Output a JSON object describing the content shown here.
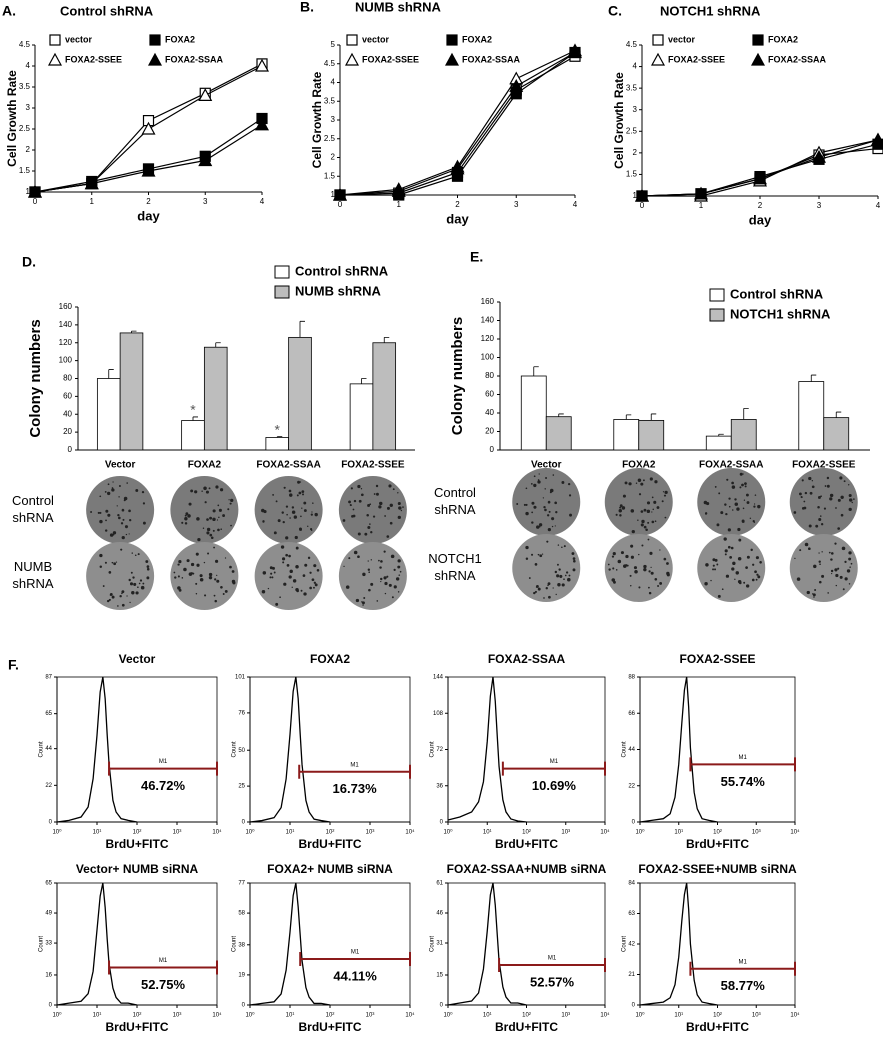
{
  "chart_data": [
    {
      "type": "line",
      "panel": "A.",
      "title": "Control shRNA",
      "xlabel": "day",
      "ylabel": "Cell Growth Rate",
      "x": [
        0,
        1,
        2,
        3,
        4
      ],
      "xlim": [
        0,
        4
      ],
      "xticks": [
        0,
        1,
        2,
        3,
        4
      ],
      "ylim": [
        1,
        4.5
      ],
      "yticks": [
        1,
        1.5,
        2,
        2.5,
        3,
        3.5,
        4,
        4.5
      ],
      "legend": "top-left",
      "series": [
        {
          "name": "vector",
          "color": "#000",
          "marker": "square",
          "filled": false,
          "values": [
            1,
            1.2,
            2.7,
            3.35,
            4.05
          ]
        },
        {
          "name": "FOXA2",
          "color": "#000",
          "marker": "square",
          "filled": true,
          "values": [
            1,
            1.25,
            1.55,
            1.85,
            2.75
          ]
        },
        {
          "name": "FOXA2-SSEE",
          "color": "#000",
          "marker": "triangle",
          "filled": false,
          "values": [
            1,
            1.2,
            2.5,
            3.3,
            4.0
          ]
        },
        {
          "name": "FOXA2-SSAA",
          "color": "#000",
          "marker": "triangle",
          "filled": true,
          "values": [
            1,
            1.2,
            1.5,
            1.75,
            2.6
          ]
        }
      ]
    },
    {
      "type": "line",
      "panel": "B.",
      "title": "NUMB  shRNA",
      "xlabel": "day",
      "ylabel": "Cell Growth Rate",
      "x": [
        0,
        1,
        2,
        3,
        4
      ],
      "xlim": [
        0,
        4
      ],
      "xticks": [
        0,
        1,
        2,
        3,
        4
      ],
      "ylim": [
        1,
        5
      ],
      "yticks": [
        1,
        1.5,
        2,
        2.5,
        3,
        3.5,
        4,
        4.5,
        5
      ],
      "legend": "top-left",
      "series": [
        {
          "name": "vector",
          "color": "#000",
          "marker": "square",
          "filled": false,
          "values": [
            1,
            1.05,
            1.6,
            3.8,
            4.7
          ]
        },
        {
          "name": "FOXA2",
          "color": "#000",
          "marker": "square",
          "filled": true,
          "values": [
            1,
            1.0,
            1.5,
            3.7,
            4.8
          ]
        },
        {
          "name": "FOXA2-SSEE",
          "color": "#000",
          "marker": "triangle",
          "filled": false,
          "values": [
            1,
            1.15,
            1.75,
            4.1,
            4.85
          ]
        },
        {
          "name": "FOXA2-SSAA",
          "color": "#000",
          "marker": "triangle",
          "filled": true,
          "values": [
            1,
            1.1,
            1.7,
            3.9,
            4.8
          ]
        }
      ]
    },
    {
      "type": "line",
      "panel": "C.",
      "title": "NOTCH1  shRNA",
      "xlabel": "day",
      "ylabel": "Cell Growth Rate",
      "x": [
        0,
        1,
        2,
        3,
        4
      ],
      "xlim": [
        0,
        4
      ],
      "xticks": [
        0,
        1,
        2,
        3,
        4
      ],
      "ylim": [
        1,
        4.5
      ],
      "yticks": [
        1,
        1.5,
        2,
        2.5,
        3,
        3.5,
        4,
        4.5
      ],
      "legend": "top-left",
      "series": [
        {
          "name": "vector",
          "color": "#000",
          "marker": "square",
          "filled": false,
          "values": [
            1,
            1.05,
            1.4,
            1.95,
            2.1
          ]
        },
        {
          "name": "FOXA2",
          "color": "#000",
          "marker": "square",
          "filled": true,
          "values": [
            1,
            1.05,
            1.45,
            1.85,
            2.2
          ]
        },
        {
          "name": "FOXA2-SSEE",
          "color": "#000",
          "marker": "triangle",
          "filled": false,
          "values": [
            1,
            1.0,
            1.35,
            2.0,
            2.3
          ]
        },
        {
          "name": "FOXA2-SSAA",
          "color": "#000",
          "marker": "triangle",
          "filled": true,
          "values": [
            1,
            1.05,
            1.4,
            1.9,
            2.3
          ]
        }
      ]
    },
    {
      "type": "bar",
      "panel": "D.",
      "ylabel": "Colony numbers",
      "categories": [
        "Vector",
        "FOXA2",
        "FOXA2-SSAA",
        "FOXA2-SSEE"
      ],
      "ylim": [
        0,
        160
      ],
      "yticks": [
        0,
        20,
        40,
        60,
        80,
        100,
        120,
        140,
        160
      ],
      "legend": "top-right",
      "series": [
        {
          "name": "Control shRNA",
          "color": "#ffffff",
          "values": [
            80,
            33,
            14,
            74
          ],
          "errors": [
            10,
            4,
            1,
            6
          ]
        },
        {
          "name": "NUMB  shRNA",
          "color": "#bdbdbd",
          "values": [
            131,
            115,
            126,
            120
          ],
          "errors": [
            2,
            5,
            18,
            6
          ]
        }
      ],
      "annotations": [
        {
          "text": "*",
          "category": "FOXA2"
        },
        {
          "text": "*",
          "category": "FOXA2-SSAA"
        }
      ],
      "row_labels": [
        [
          "Control",
          "shRNA"
        ],
        [
          "NUMB",
          "shRNA"
        ]
      ]
    },
    {
      "type": "bar",
      "panel": "E.",
      "ylabel": "Colony numbers",
      "categories": [
        "Vector",
        "FOXA2",
        "FOXA2-SSAA",
        "FOXA2-SSEE"
      ],
      "ylim": [
        0,
        160
      ],
      "yticks": [
        0,
        20,
        40,
        60,
        80,
        100,
        120,
        140,
        160
      ],
      "legend": "top-right",
      "series": [
        {
          "name": "Control shRNA",
          "color": "#ffffff",
          "values": [
            80,
            33,
            15,
            74
          ],
          "errors": [
            10,
            5,
            2,
            7
          ]
        },
        {
          "name": "NOTCH1 shRNA",
          "color": "#bdbdbd",
          "values": [
            36,
            32,
            33,
            35
          ],
          "errors": [
            3,
            7,
            12,
            6
          ]
        }
      ],
      "row_labels": [
        [
          "Control",
          "shRNA"
        ],
        [
          "NOTCH1",
          "shRNA"
        ]
      ]
    },
    {
      "type": "flow",
      "panel": "F.",
      "title": "Vector",
      "xlabel": "BrdU+FITC",
      "ylabel": "Count",
      "annotation": "46.72%",
      "gate_label": "M1",
      "gate": [
        20,
        10000
      ],
      "gate_y": 32,
      "x": [
        1,
        2,
        4,
        6,
        8,
        10,
        12,
        14,
        16,
        18,
        20,
        25,
        30,
        40,
        60,
        100
      ],
      "values": [
        0,
        1,
        3,
        9,
        26,
        52,
        78,
        87,
        74,
        52,
        35,
        13,
        6,
        2,
        1,
        0
      ],
      "xlim": [
        1,
        10000
      ],
      "xscale": "log",
      "xticks": [
        {
          "value": 1,
          "label": "10⁰"
        },
        {
          "value": 10,
          "label": "10¹"
        },
        {
          "value": 100,
          "label": "10²"
        },
        {
          "value": 1000,
          "label": "10³"
        },
        {
          "value": 10000,
          "label": "10⁴"
        }
      ],
      "ylim": [
        0,
        87
      ],
      "yticks": [
        0,
        22,
        44,
        65,
        87
      ]
    },
    {
      "type": "flow",
      "title": "FOXA2",
      "xlabel": "BrdU+FITC",
      "ylabel": "Count",
      "annotation": "16.73%",
      "gate_label": "M1",
      "gate": [
        17,
        10000
      ],
      "gate_y": 35,
      "x": [
        1,
        2,
        4,
        6,
        8,
        10,
        12,
        14,
        16,
        18,
        20,
        25,
        30,
        40,
        60,
        100
      ],
      "values": [
        0,
        1,
        3,
        10,
        30,
        61,
        91,
        101,
        86,
        61,
        40,
        15,
        7,
        2,
        1,
        0
      ],
      "xlim": [
        1,
        10000
      ],
      "xscale": "log",
      "xticks": [
        {
          "value": 1,
          "label": "10⁰"
        },
        {
          "value": 10,
          "label": "10¹"
        },
        {
          "value": 100,
          "label": "10²"
        },
        {
          "value": 1000,
          "label": "10³"
        },
        {
          "value": 10000,
          "label": "10⁴"
        }
      ],
      "ylim": [
        0,
        101
      ],
      "yticks": [
        0,
        25,
        50,
        76,
        101
      ]
    },
    {
      "type": "flow",
      "title": "FOXA2-SSAA",
      "xlabel": "BrdU+FITC",
      "ylabel": "Count",
      "annotation": "10.69%",
      "gate_label": "M1",
      "gate": [
        25,
        10000
      ],
      "gate_y": 53,
      "x": [
        1,
        2,
        4,
        6,
        8,
        10,
        12,
        14,
        16,
        18,
        20,
        25,
        30,
        40,
        60,
        100
      ],
      "values": [
        2,
        5,
        10,
        20,
        40,
        80,
        125,
        144,
        120,
        85,
        55,
        22,
        10,
        3,
        1,
        0
      ],
      "xlim": [
        1,
        10000
      ],
      "xscale": "log",
      "xticks": [
        {
          "value": 1,
          "label": "10⁰"
        },
        {
          "value": 10,
          "label": "10¹"
        },
        {
          "value": 100,
          "label": "10²"
        },
        {
          "value": 1000,
          "label": "10³"
        },
        {
          "value": 10000,
          "label": "10⁴"
        }
      ],
      "ylim": [
        0,
        144
      ],
      "yticks": [
        0,
        36,
        72,
        108,
        144
      ]
    },
    {
      "type": "flow",
      "title": "FOXA2-SSEE",
      "xlabel": "BrdU+FITC",
      "ylabel": "Count",
      "annotation": "55.74%",
      "gate_label": "M1",
      "gate": [
        20,
        10000
      ],
      "gate_y": 35,
      "x": [
        1,
        2,
        4,
        6,
        8,
        10,
        12,
        14,
        16,
        18,
        20,
        25,
        30,
        40,
        60,
        100
      ],
      "values": [
        0,
        1,
        2,
        5,
        15,
        35,
        60,
        80,
        88,
        70,
        45,
        18,
        8,
        2,
        1,
        0
      ],
      "xlim": [
        1,
        10000
      ],
      "xscale": "log",
      "xticks": [
        {
          "value": 1,
          "label": "10⁰"
        },
        {
          "value": 10,
          "label": "10¹"
        },
        {
          "value": 100,
          "label": "10²"
        },
        {
          "value": 1000,
          "label": "10³"
        },
        {
          "value": 10000,
          "label": "10⁴"
        }
      ],
      "ylim": [
        0,
        88
      ],
      "yticks": [
        0,
        22,
        44,
        66,
        88
      ]
    },
    {
      "type": "flow",
      "title": "Vector+ NUMB siRNA",
      "xlabel": "BrdU+FITC",
      "ylabel": "Count",
      "annotation": "52.75%",
      "gate_label": "M1",
      "gate": [
        20,
        10000
      ],
      "gate_y": 20,
      "x": [
        1,
        2,
        4,
        6,
        8,
        10,
        12,
        14,
        16,
        18,
        20,
        25,
        30,
        40,
        60,
        100
      ],
      "values": [
        0,
        1,
        2,
        6,
        18,
        40,
        58,
        65,
        52,
        35,
        22,
        9,
        4,
        1,
        1,
        0
      ],
      "xlim": [
        1,
        10000
      ],
      "xscale": "log",
      "xticks": [
        {
          "value": 1,
          "label": "10⁰"
        },
        {
          "value": 10,
          "label": "10¹"
        },
        {
          "value": 100,
          "label": "10²"
        },
        {
          "value": 1000,
          "label": "10³"
        },
        {
          "value": 10000,
          "label": "10⁴"
        }
      ],
      "ylim": [
        0,
        65
      ],
      "yticks": [
        0,
        16,
        33,
        49,
        65
      ]
    },
    {
      "type": "flow",
      "title": "FOXA2+ NUMB siRNA",
      "xlabel": "BrdU+FITC",
      "ylabel": "Count",
      "annotation": "44.11%",
      "gate_label": "M1",
      "gate": [
        18,
        10000
      ],
      "gate_y": 29,
      "x": [
        1,
        2,
        4,
        6,
        8,
        10,
        12,
        14,
        16,
        18,
        20,
        25,
        30,
        40,
        60,
        100
      ],
      "values": [
        0,
        1,
        2,
        7,
        22,
        46,
        69,
        77,
        62,
        44,
        28,
        11,
        5,
        1,
        1,
        0
      ],
      "xlim": [
        1,
        10000
      ],
      "xscale": "log",
      "xticks": [
        {
          "value": 1,
          "label": "10⁰"
        },
        {
          "value": 10,
          "label": "10¹"
        },
        {
          "value": 100,
          "label": "10²"
        },
        {
          "value": 1000,
          "label": "10³"
        },
        {
          "value": 10000,
          "label": "10⁴"
        }
      ],
      "ylim": [
        0,
        77
      ],
      "yticks": [
        0,
        19,
        38,
        58,
        77
      ]
    },
    {
      "type": "flow",
      "title": "FOXA2-SSAA+NUMB siRNA",
      "xlabel": "BrdU+FITC",
      "ylabel": "Count",
      "annotation": "52.57%",
      "gate_label": "M1",
      "gate": [
        20,
        10000
      ],
      "gate_y": 20,
      "x": [
        1,
        2,
        4,
        6,
        8,
        10,
        12,
        14,
        16,
        18,
        20,
        25,
        30,
        40,
        60,
        100
      ],
      "values": [
        0,
        1,
        2,
        6,
        18,
        37,
        55,
        61,
        50,
        35,
        22,
        9,
        4,
        1,
        1,
        0
      ],
      "xlim": [
        1,
        10000
      ],
      "xscale": "log",
      "xticks": [
        {
          "value": 1,
          "label": "10⁰"
        },
        {
          "value": 10,
          "label": "10¹"
        },
        {
          "value": 100,
          "label": "10²"
        },
        {
          "value": 1000,
          "label": "10³"
        },
        {
          "value": 10000,
          "label": "10⁴"
        }
      ],
      "ylim": [
        0,
        61
      ],
      "yticks": [
        0,
        15,
        31,
        46,
        61
      ]
    },
    {
      "type": "flow",
      "title": "FOXA2-SSEE+NUMB siRNA",
      "xlabel": "BrdU+FITC",
      "ylabel": "Count",
      "annotation": "58.77%",
      "gate_label": "M1",
      "gate": [
        20,
        10000
      ],
      "gate_y": 25,
      "x": [
        1,
        2,
        4,
        6,
        8,
        10,
        12,
        14,
        16,
        18,
        20,
        25,
        30,
        40,
        60,
        100
      ],
      "values": [
        0,
        1,
        2,
        5,
        14,
        33,
        58,
        76,
        84,
        66,
        42,
        17,
        7,
        2,
        1,
        0
      ],
      "xlim": [
        1,
        10000
      ],
      "xscale": "log",
      "xticks": [
        {
          "value": 1,
          "label": "10⁰"
        },
        {
          "value": 10,
          "label": "10¹"
        },
        {
          "value": 100,
          "label": "10²"
        },
        {
          "value": 1000,
          "label": "10³"
        },
        {
          "value": 10000,
          "label": "10⁴"
        }
      ],
      "ylim": [
        0,
        84
      ],
      "yticks": [
        0,
        21,
        42,
        63,
        84
      ]
    }
  ]
}
